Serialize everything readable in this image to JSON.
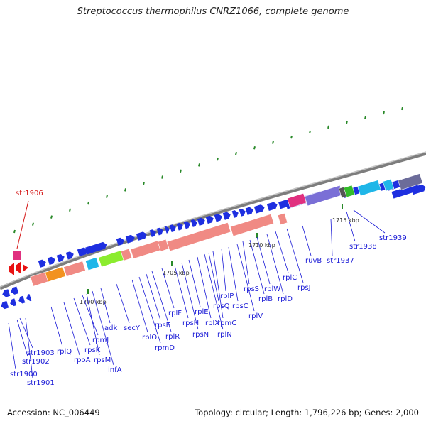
{
  "title": "Streptococcus thermophilus CNRZ1066, complete genome",
  "accession_label": "Accession: NC_006449",
  "summary_label": "Topology: circular; Length: 1,796,226 bp; Genes: 2,000",
  "colors": {
    "blue_gene": "#1e2fe0",
    "salmon_gene": "#f08a84",
    "pink_gene": "#e0307f",
    "cyan_gene": "#1fb6e8",
    "lime_gene": "#8bec2e",
    "orange_gene": "#f29220",
    "purple_gene": "#7a6fd6",
    "green_gene": "#33bb2a",
    "red_gene": "#e81212",
    "backbone": "#8a8a8a",
    "tick": "#2a8a2a",
    "label": "#1a1ad6",
    "highlight_label": "#d41616"
  },
  "kbp_markers": [
    "1700 kbp",
    "1705 kbp",
    "1710 kbp",
    "1715 kbp"
  ],
  "gene_labels": [
    {
      "name": "str1906",
      "highlight": true
    },
    {
      "name": "str1903"
    },
    {
      "name": "str1902"
    },
    {
      "name": "str1900"
    },
    {
      "name": "str1901"
    },
    {
      "name": "rplQ"
    },
    {
      "name": "rpoA"
    },
    {
      "name": "rpsK"
    },
    {
      "name": "rpmJ"
    },
    {
      "name": "rpsM"
    },
    {
      "name": "infA"
    },
    {
      "name": "adk"
    },
    {
      "name": "secY"
    },
    {
      "name": "rplO"
    },
    {
      "name": "rpmD"
    },
    {
      "name": "rpsE"
    },
    {
      "name": "rplR"
    },
    {
      "name": "rplF"
    },
    {
      "name": "rpsH"
    },
    {
      "name": "rpsN"
    },
    {
      "name": "rplE"
    },
    {
      "name": "rplX"
    },
    {
      "name": "rplN"
    },
    {
      "name": "rpsQ"
    },
    {
      "name": "rpmC"
    },
    {
      "name": "rplP"
    },
    {
      "name": "rpsC"
    },
    {
      "name": "rplV"
    },
    {
      "name": "rpsS"
    },
    {
      "name": "rplB"
    },
    {
      "name": "rplW"
    },
    {
      "name": "rplD"
    },
    {
      "name": "rplC"
    },
    {
      "name": "rpsJ"
    },
    {
      "name": "ruvB"
    },
    {
      "name": "str1937"
    },
    {
      "name": "str1938"
    },
    {
      "name": "str1939"
    }
  ]
}
